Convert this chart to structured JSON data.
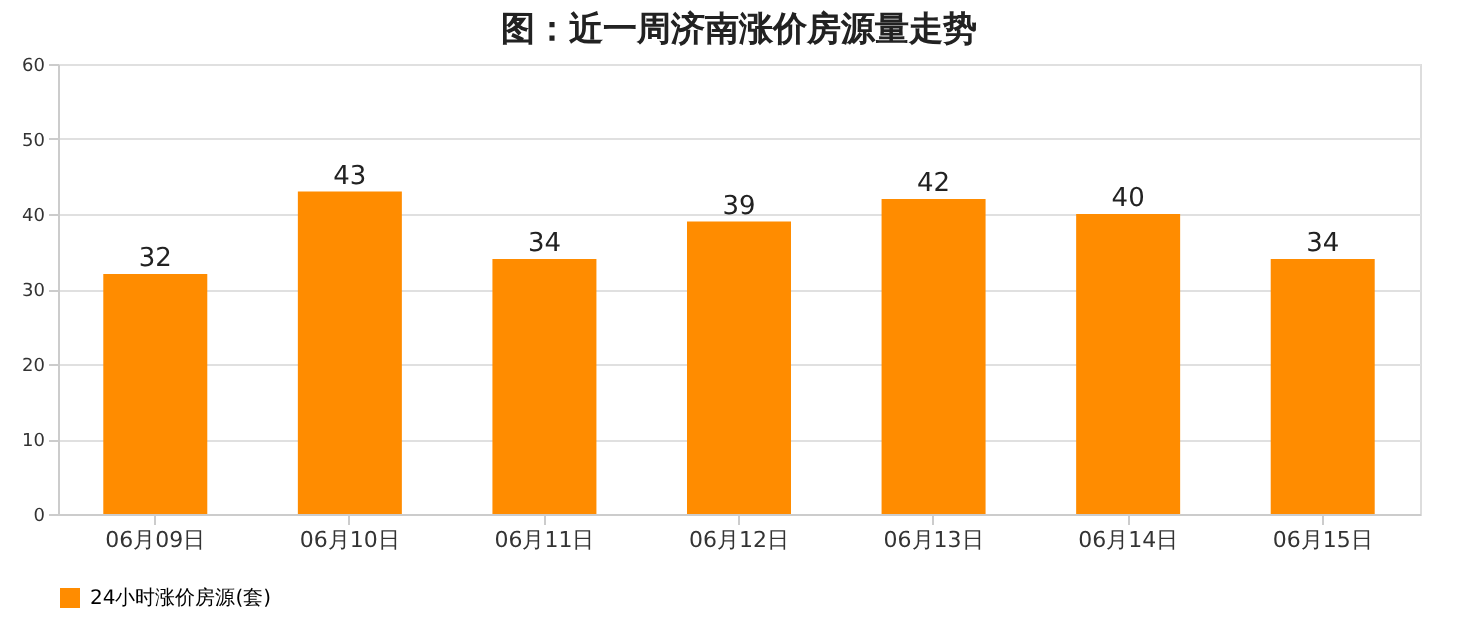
{
  "chart_data": {
    "type": "bar",
    "title": "图：近一周济南涨价房源量走势",
    "categories": [
      "06月09日",
      "06月10日",
      "06月11日",
      "06月12日",
      "06月13日",
      "06月14日",
      "06月15日"
    ],
    "series": [
      {
        "name": "24小时涨价房源(套)",
        "color": "#ff8c00",
        "values": [
          32,
          43,
          34,
          39,
          42,
          40,
          34
        ]
      }
    ],
    "ylim": [
      0,
      60
    ],
    "yticks": [
      0,
      10,
      20,
      30,
      40,
      50,
      60
    ],
    "grid": "y",
    "legend": "bottom",
    "data_labels": true
  }
}
